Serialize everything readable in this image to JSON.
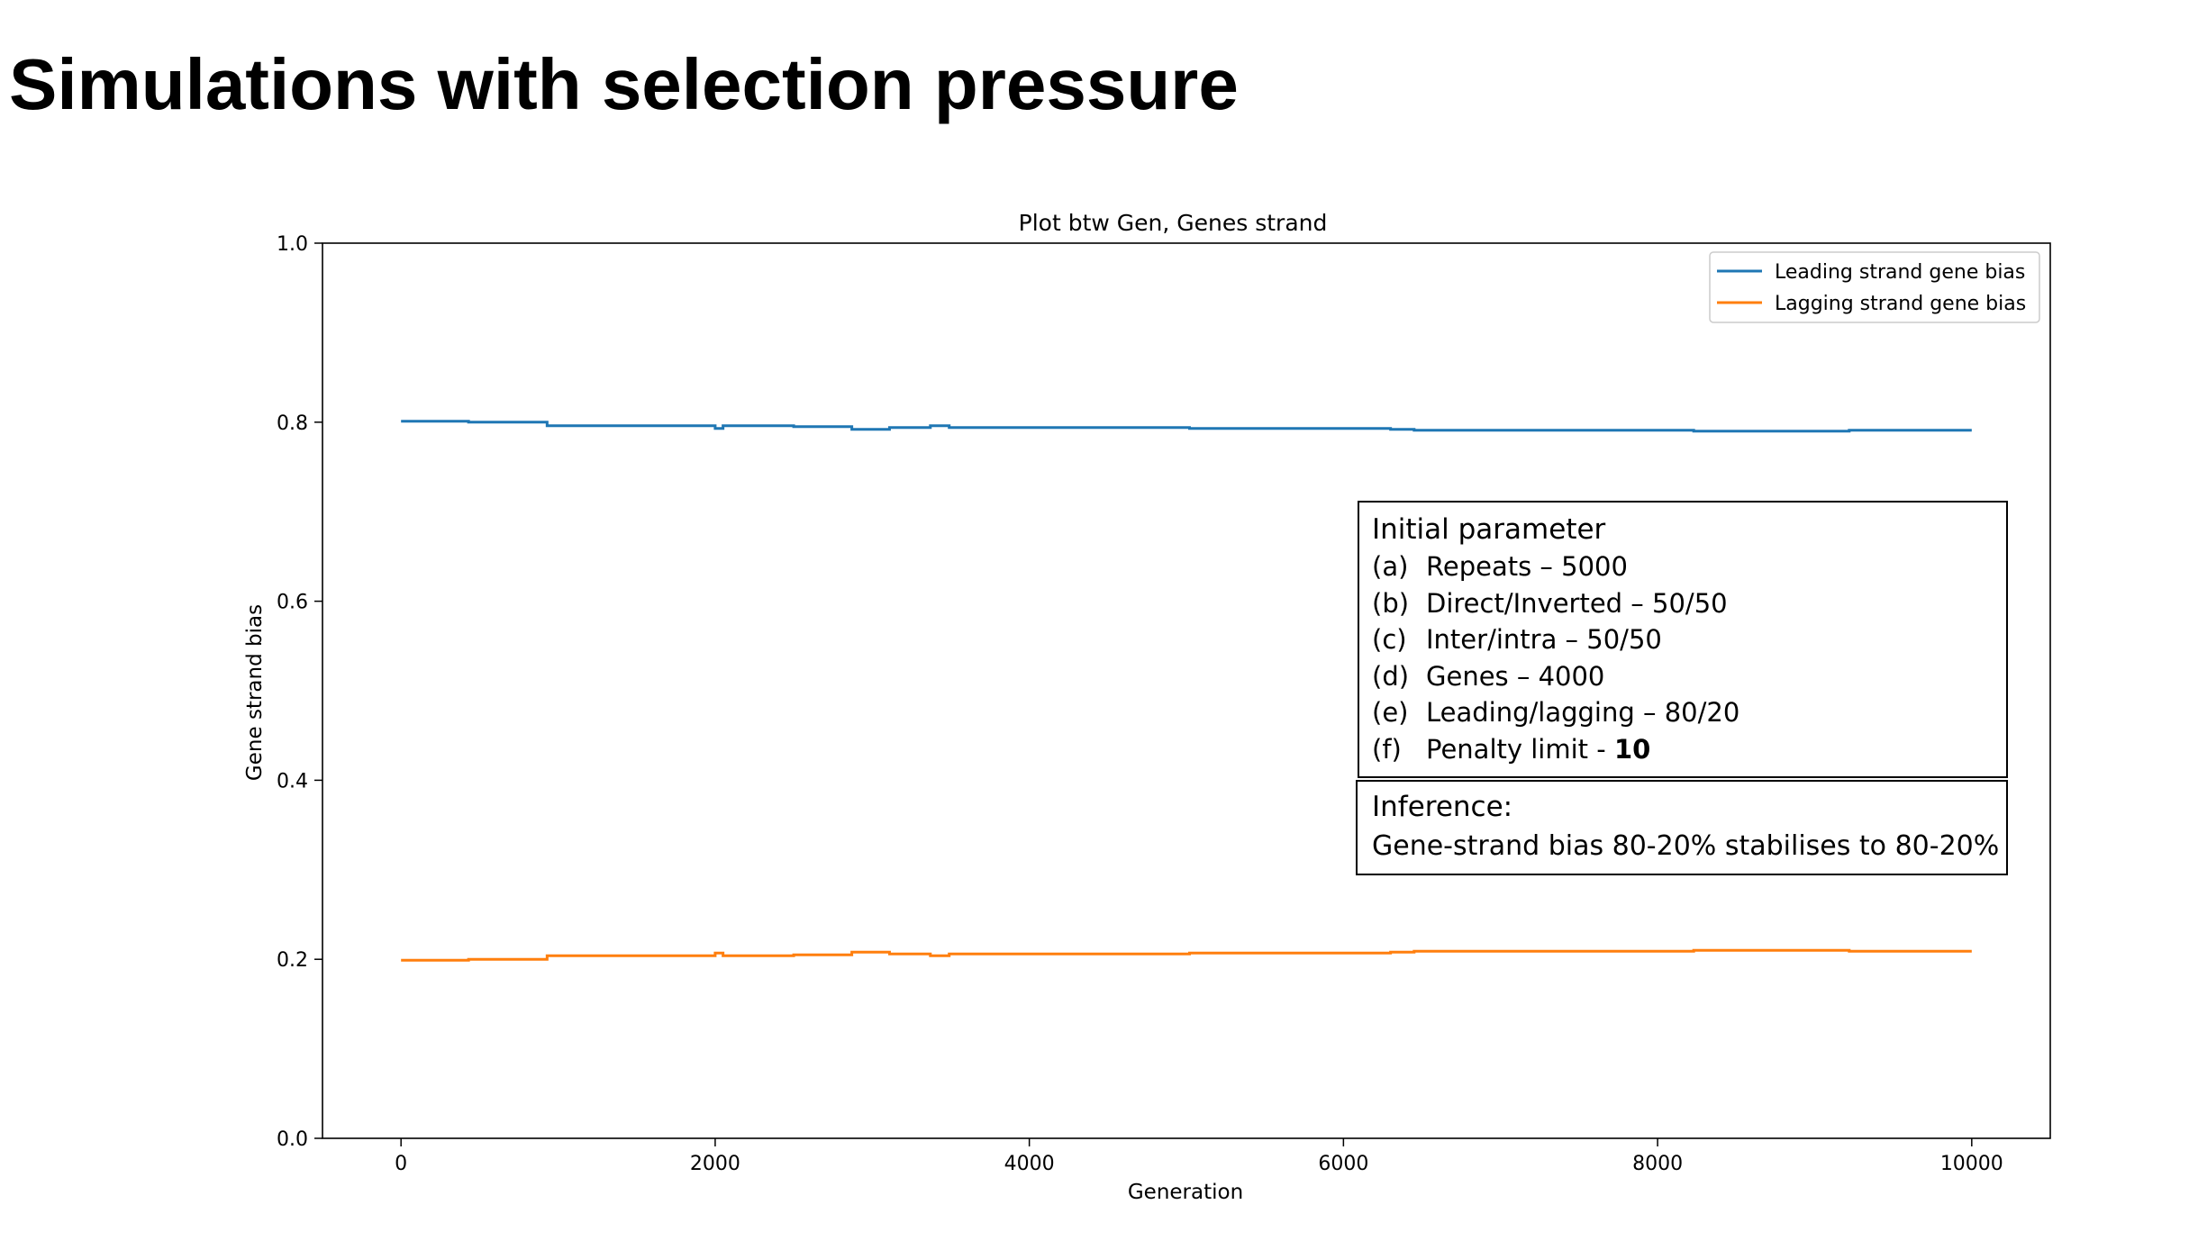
{
  "slide": {
    "title": "Simulations with selection pressure"
  },
  "colors": {
    "leading": "#1f77b4",
    "lagging": "#ff7f0e",
    "axis": "#000000"
  },
  "chart_data": {
    "type": "line",
    "title": "Plot btw Gen, Genes strand",
    "xlabel": "Generation",
    "ylabel": "Gene strand bias",
    "xlim": [
      -500,
      10500
    ],
    "ylim": [
      0.0,
      1.0
    ],
    "xticks": [
      0,
      2000,
      4000,
      6000,
      8000,
      10000
    ],
    "xtick_labels": [
      "0",
      "2000",
      "4000",
      "6000",
      "8000",
      "10000"
    ],
    "yticks": [
      0.0,
      0.2,
      0.4,
      0.6,
      0.8,
      1.0
    ],
    "ytick_labels": [
      "0.0",
      "0.2",
      "0.4",
      "0.6",
      "0.8",
      "1.0"
    ],
    "grid": false,
    "legend_position": "upper right",
    "series": [
      {
        "name": "Leading strand gene bias",
        "color": "#1f77b4",
        "step": true,
        "points": [
          [
            0,
            0.801
          ],
          [
            430,
            0.8
          ],
          [
            930,
            0.796
          ],
          [
            2000,
            0.793
          ],
          [
            2050,
            0.796
          ],
          [
            2500,
            0.795
          ],
          [
            2870,
            0.792
          ],
          [
            3110,
            0.794
          ],
          [
            3370,
            0.796
          ],
          [
            3490,
            0.794
          ],
          [
            5020,
            0.793
          ],
          [
            6300,
            0.792
          ],
          [
            6450,
            0.791
          ],
          [
            8230,
            0.79
          ],
          [
            9220,
            0.791
          ],
          [
            10000,
            0.791
          ]
        ]
      },
      {
        "name": "Lagging strand gene bias",
        "color": "#ff7f0e",
        "step": true,
        "points": [
          [
            0,
            0.199
          ],
          [
            430,
            0.2
          ],
          [
            930,
            0.204
          ],
          [
            2000,
            0.207
          ],
          [
            2050,
            0.204
          ],
          [
            2500,
            0.205
          ],
          [
            2870,
            0.208
          ],
          [
            3110,
            0.206
          ],
          [
            3370,
            0.204
          ],
          [
            3490,
            0.206
          ],
          [
            5020,
            0.207
          ],
          [
            6300,
            0.208
          ],
          [
            6450,
            0.209
          ],
          [
            8230,
            0.21
          ],
          [
            9220,
            0.209
          ],
          [
            10000,
            0.209
          ]
        ]
      }
    ]
  },
  "annotation": {
    "params_heading": "Initial parameter",
    "params": [
      {
        "marker": "(a)",
        "text": "Repeats – 5000",
        "bold": ""
      },
      {
        "marker": "(b)",
        "text": "Direct/Inverted – 50/50",
        "bold": ""
      },
      {
        "marker": "(c)",
        "text": "Inter/intra – 50/50",
        "bold": ""
      },
      {
        "marker": "(d)",
        "text": "Genes – 4000",
        "bold": ""
      },
      {
        "marker": "(e)",
        "text": "Leading/lagging – 80/20",
        "bold": ""
      },
      {
        "marker": "(f)",
        "text": "Penalty limit - ",
        "bold": "10"
      }
    ],
    "inference_heading": "Inference:",
    "inference_text": "Gene-strand bias 80-20% stabilises to 80-20%"
  }
}
